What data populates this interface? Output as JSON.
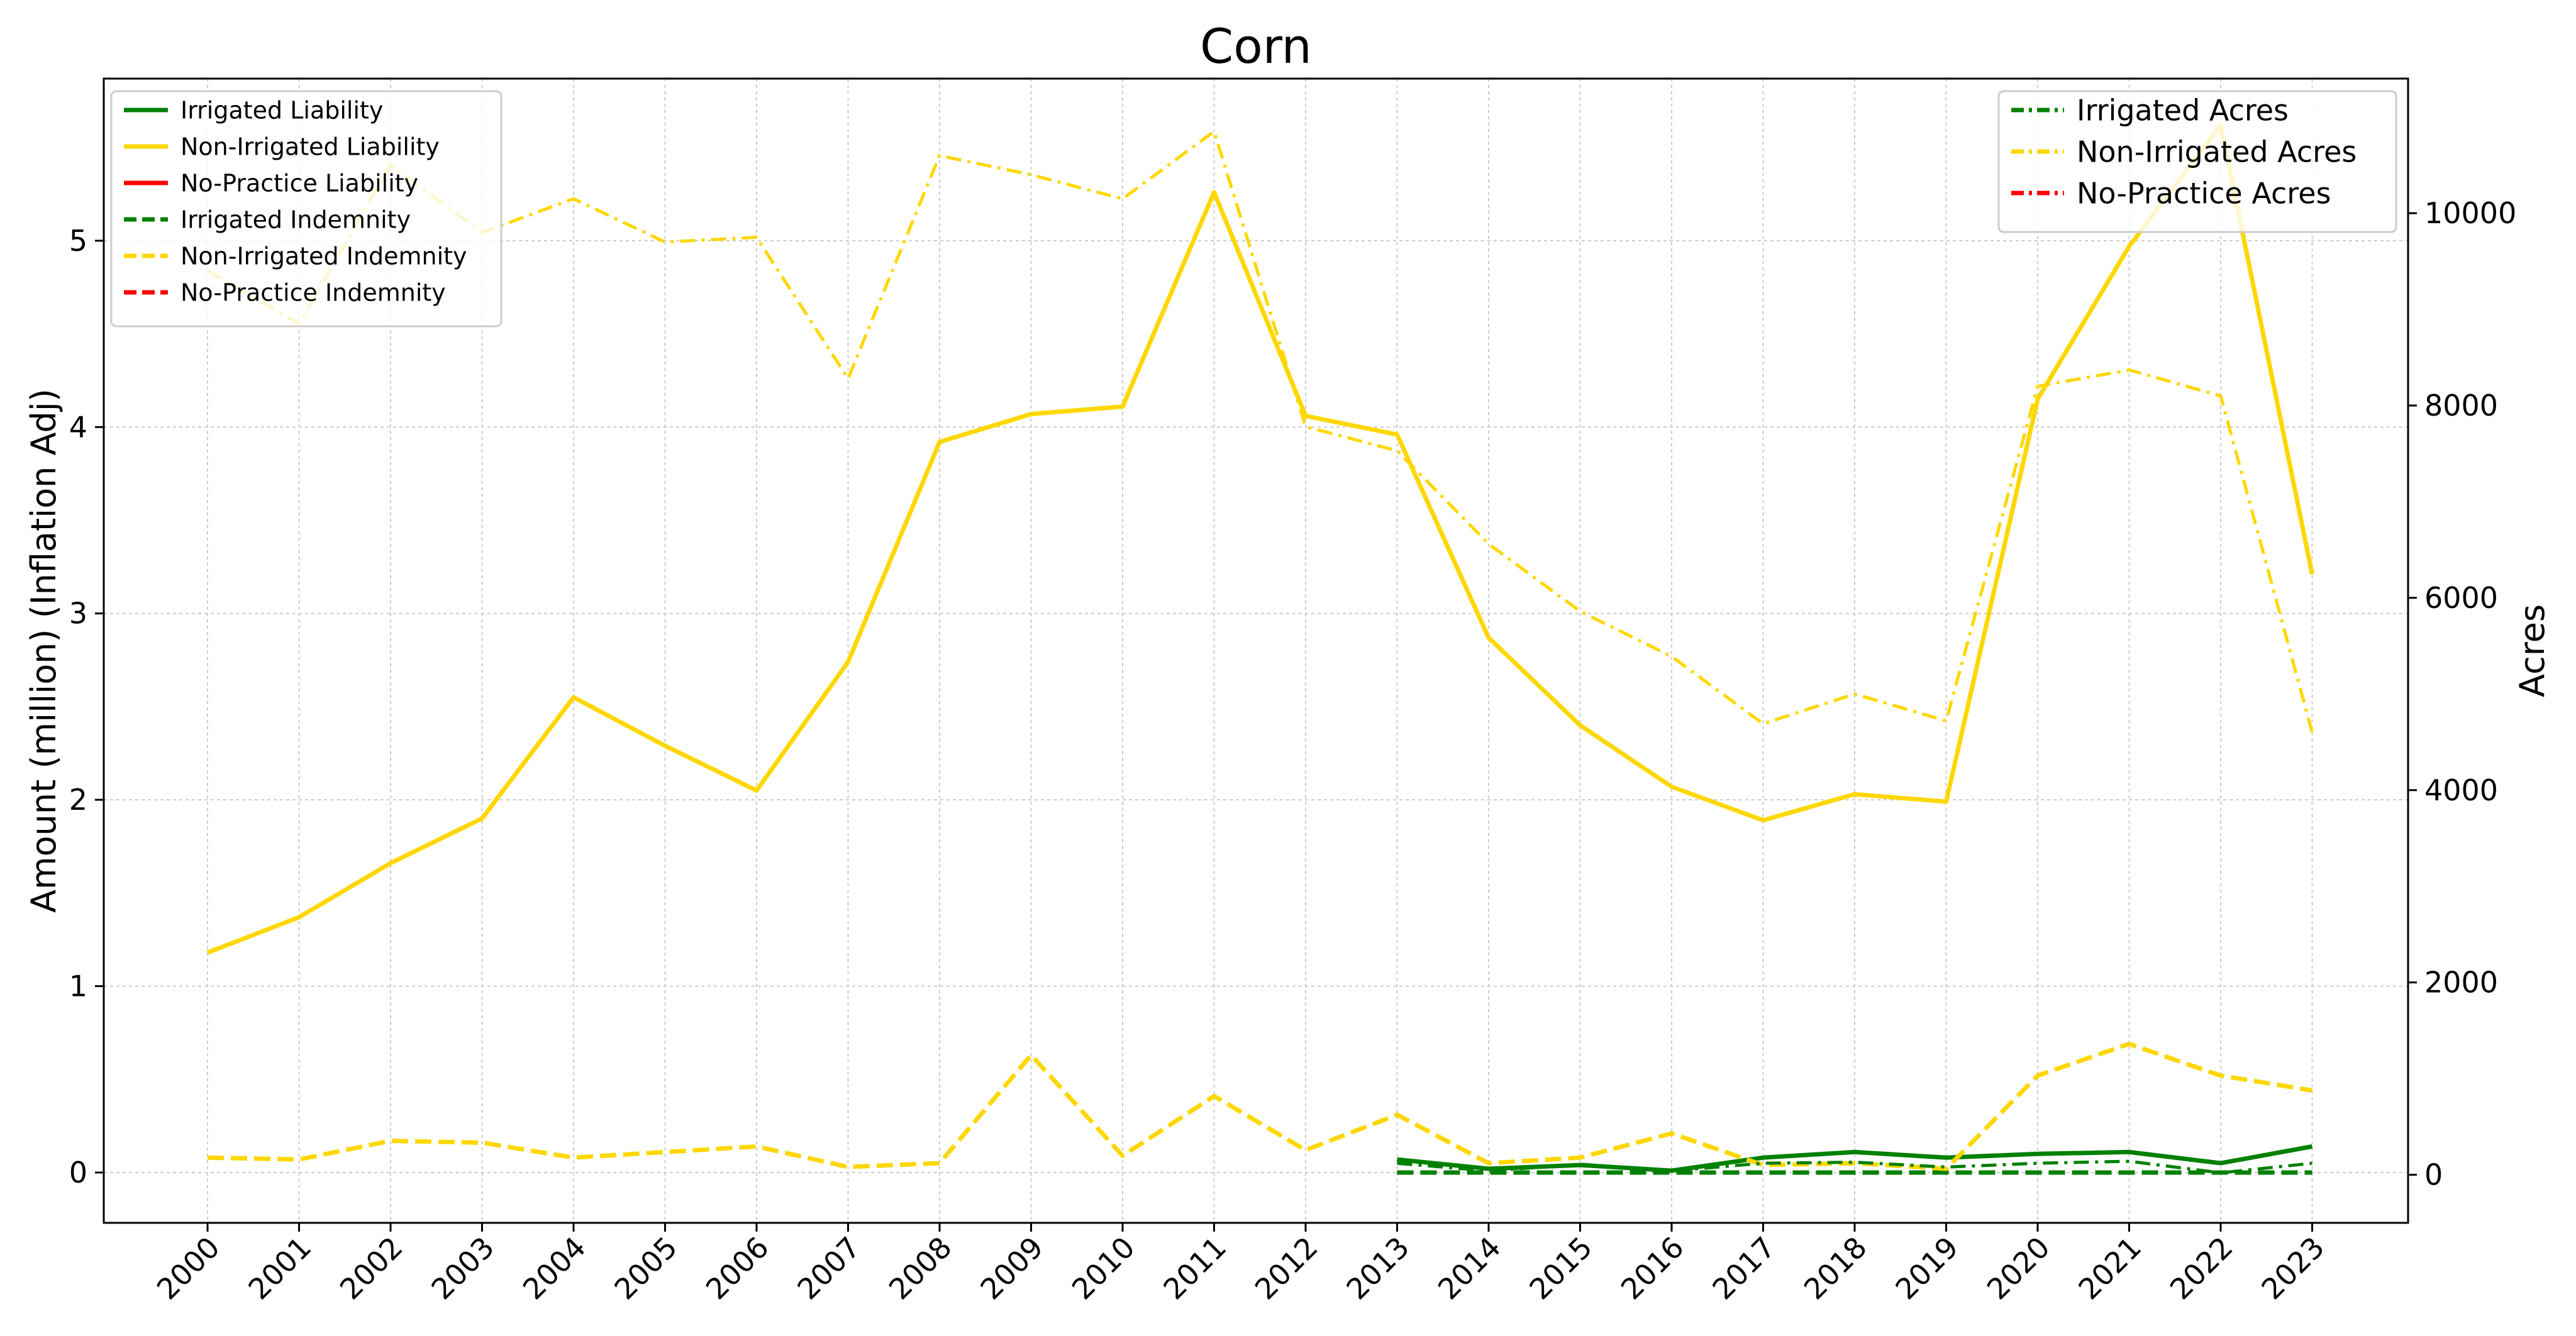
{
  "chart_data": {
    "type": "line",
    "title": "Corn",
    "xlabel": "",
    "ylabel": "Amount (million) (Inflation Adj)",
    "y2label": "Acres",
    "categories": [
      "2000",
      "2001",
      "2002",
      "2003",
      "2004",
      "2005",
      "2006",
      "2007",
      "2008",
      "2009",
      "2010",
      "2011",
      "2012",
      "2013",
      "2014",
      "2015",
      "2016",
      "2017",
      "2018",
      "2019",
      "2020",
      "2021",
      "2022",
      "2023"
    ],
    "ylim": [
      -0.27,
      5.87
    ],
    "y2lim": [
      -500,
      11400
    ],
    "yticks": [
      0,
      1,
      2,
      3,
      4,
      5
    ],
    "y2ticks": [
      0,
      2000,
      4000,
      6000,
      8000,
      10000
    ],
    "grid": true,
    "colors": {
      "irrigated": "#008000",
      "non_irrigated": "#FFD700",
      "no_practice": "#FF0000"
    },
    "series": [
      {
        "name": "Irrigated Liability",
        "axis": "left",
        "style": "solid",
        "color": "#008000",
        "values": [
          null,
          null,
          null,
          null,
          null,
          null,
          null,
          null,
          null,
          null,
          null,
          null,
          null,
          0.07,
          0.02,
          0.04,
          0.01,
          0.08,
          0.11,
          0.08,
          0.1,
          0.11,
          0.05,
          0.14
        ]
      },
      {
        "name": "Non-Irrigated Liability",
        "axis": "left",
        "style": "solid",
        "color": "#FFD700",
        "values": [
          1.18,
          1.37,
          1.66,
          1.9,
          2.55,
          2.29,
          2.05,
          2.74,
          3.92,
          4.07,
          4.11,
          5.26,
          4.06,
          3.96,
          2.87,
          2.4,
          2.07,
          1.89,
          2.03,
          1.99,
          4.15,
          4.97,
          5.62,
          3.21
        ]
      },
      {
        "name": "No-Practice Liability",
        "axis": "left",
        "style": "solid",
        "color": "#FF0000",
        "values": [
          null,
          null,
          null,
          null,
          null,
          null,
          null,
          null,
          null,
          null,
          null,
          null,
          null,
          null,
          null,
          null,
          null,
          null,
          null,
          null,
          null,
          null,
          null,
          null
        ]
      },
      {
        "name": "Irrigated Indemnity",
        "axis": "left",
        "style": "dashed",
        "color": "#008000",
        "values": [
          null,
          null,
          null,
          null,
          null,
          null,
          null,
          null,
          null,
          null,
          null,
          null,
          null,
          0.0,
          0.0,
          0.0,
          0.0,
          0.0,
          0.0,
          0.0,
          0.0,
          0.0,
          0.0,
          0.0
        ]
      },
      {
        "name": "Non-Irrigated Indemnity",
        "axis": "left",
        "style": "dashed",
        "color": "#FFD700",
        "values": [
          0.08,
          0.07,
          0.17,
          0.16,
          0.08,
          0.11,
          0.14,
          0.03,
          0.05,
          0.63,
          0.09,
          0.41,
          0.12,
          0.31,
          0.05,
          0.08,
          0.21,
          0.04,
          0.05,
          0.02,
          0.52,
          0.69,
          0.52,
          0.44
        ]
      },
      {
        "name": "No-Practice Indemnity",
        "axis": "left",
        "style": "dashed",
        "color": "#FF0000",
        "values": [
          null,
          null,
          null,
          null,
          null,
          null,
          null,
          null,
          null,
          null,
          null,
          null,
          null,
          null,
          null,
          null,
          null,
          null,
          null,
          null,
          null,
          null,
          null,
          null
        ]
      },
      {
        "name": "Irrigated Acres",
        "axis": "right",
        "style": "dashdot",
        "color": "#008000",
        "values": [
          null,
          null,
          null,
          null,
          null,
          null,
          null,
          null,
          null,
          null,
          null,
          null,
          null,
          120,
          40,
          110,
          40,
          120,
          130,
          80,
          120,
          140,
          20,
          120
        ]
      },
      {
        "name": "Non-Irrigated Acres",
        "axis": "right",
        "style": "dashdot",
        "color": "#FFD700",
        "values": [
          9400,
          8850,
          10500,
          9800,
          10150,
          9700,
          9750,
          8280,
          10600,
          10400,
          10150,
          10850,
          7780,
          7530,
          6560,
          5860,
          5390,
          4690,
          5000,
          4720,
          8200,
          8370,
          8100,
          4600
        ]
      },
      {
        "name": "No-Practice Acres",
        "axis": "right",
        "style": "dashdot",
        "color": "#FF0000",
        "values": [
          null,
          null,
          null,
          null,
          null,
          null,
          null,
          null,
          null,
          null,
          null,
          null,
          null,
          null,
          null,
          null,
          null,
          null,
          null,
          null,
          null,
          null,
          null,
          null
        ]
      }
    ],
    "legends": [
      {
        "position": "upper-left",
        "entries": [
          "Irrigated Liability",
          "Non-Irrigated Liability",
          "No-Practice Liability",
          "Irrigated Indemnity",
          "Non-Irrigated Indemnity",
          "No-Practice Indemnity"
        ]
      },
      {
        "position": "upper-right",
        "entries": [
          "Irrigated Acres",
          "Non-Irrigated Acres",
          "No-Practice Acres"
        ]
      }
    ]
  }
}
